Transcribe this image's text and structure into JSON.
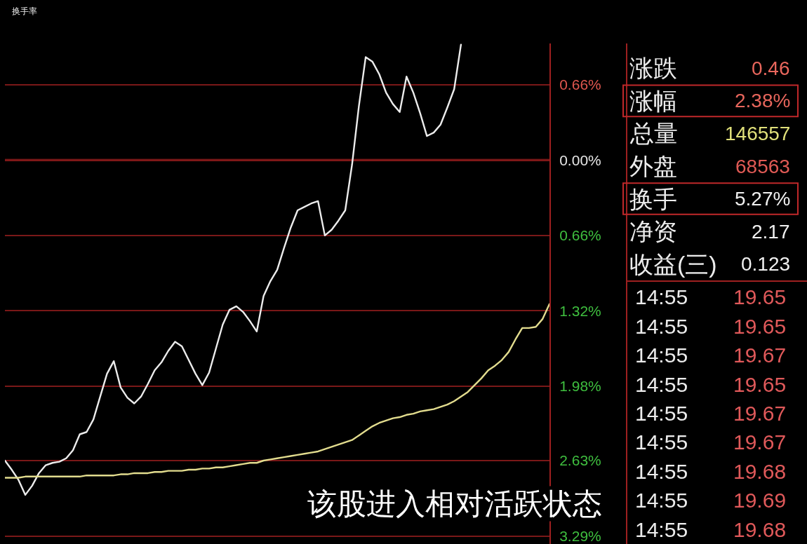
{
  "chart_data": [
    {
      "type": "line",
      "title": "换手率",
      "annotations": [
        "该股进入相对活跃状态"
      ],
      "categories": [
        null,
        null,
        null,
        null,
        null,
        null,
        null,
        null,
        null,
        null,
        null,
        null,
        null,
        null,
        null,
        null,
        null,
        null,
        null,
        null,
        null,
        null,
        null,
        null,
        null,
        null,
        null,
        null,
        null,
        null,
        null,
        null,
        null,
        null,
        null,
        null,
        null,
        null,
        null,
        null,
        null,
        null,
        null,
        null,
        null,
        null,
        null,
        null,
        null,
        null,
        null,
        null,
        null,
        null,
        null,
        null,
        null,
        null,
        null,
        null,
        null,
        null,
        null,
        null,
        null,
        null,
        null,
        null,
        null,
        null,
        null,
        null,
        null,
        null,
        null,
        null,
        null,
        null,
        null,
        null,
        null
      ],
      "series": [
        {
          "color": "#ececec",
          "values": [
            -2.63,
            -2.71,
            -2.8,
            -2.93,
            -2.85,
            -2.74,
            -2.67,
            -2.65,
            -2.64,
            -2.61,
            -2.54,
            -2.4,
            -2.38,
            -2.27,
            -2.07,
            -1.87,
            -1.76,
            -1.99,
            -2.08,
            -2.13,
            -2.07,
            -1.96,
            -1.84,
            -1.77,
            -1.67,
            -1.59,
            -1.63,
            -1.75,
            -1.87,
            -1.97,
            -1.86,
            -1.65,
            -1.44,
            -1.31,
            -1.28,
            -1.33,
            -1.41,
            -1.5,
            -1.19,
            -1.06,
            -0.96,
            -0.77,
            -0.59,
            -0.44,
            -0.41,
            -0.38,
            -0.36,
            -0.66,
            -0.61,
            -0.53,
            -0.44,
            -0.04,
            0.47,
            0.9,
            0.86,
            0.75,
            0.59,
            0.49,
            0.42,
            0.73,
            0.59,
            0.41,
            0.21,
            0.24,
            0.31,
            0.46,
            0.62,
            1.01,
            null,
            null,
            null,
            null,
            null,
            null,
            null,
            null,
            null,
            null,
            null,
            null,
            null
          ]
        },
        {
          "color": "#e2dc8e",
          "values": [
            -2.78,
            -2.78,
            -2.78,
            -2.77,
            -2.77,
            -2.77,
            -2.77,
            -2.77,
            -2.77,
            -2.77,
            -2.77,
            -2.77,
            -2.76,
            -2.76,
            -2.76,
            -2.76,
            -2.76,
            -2.75,
            -2.75,
            -2.74,
            -2.74,
            -2.74,
            -2.73,
            -2.73,
            -2.72,
            -2.72,
            -2.72,
            -2.71,
            -2.71,
            -2.7,
            -2.7,
            -2.69,
            -2.69,
            -2.68,
            -2.67,
            -2.66,
            -2.65,
            -2.65,
            -2.63,
            -2.62,
            -2.61,
            -2.6,
            -2.59,
            -2.58,
            -2.57,
            -2.56,
            -2.55,
            -2.53,
            -2.51,
            -2.49,
            -2.47,
            -2.45,
            -2.41,
            -2.37,
            -2.33,
            -2.3,
            -2.28,
            -2.26,
            -2.25,
            -2.23,
            -2.22,
            -2.2,
            -2.19,
            -2.18,
            -2.16,
            -2.14,
            -2.11,
            -2.07,
            -2.03,
            -1.97,
            -1.91,
            -1.84,
            -1.8,
            -1.75,
            -1.68,
            -1.57,
            -1.47,
            -1.47,
            -1.46,
            -1.39,
            -1.26
          ]
        }
      ],
      "ylim": [
        -3.36,
        1.02
      ],
      "yticks": [
        {
          "value": 0.66,
          "label": "0.66%"
        },
        {
          "value": 0,
          "label": "0.00%"
        },
        {
          "value": -0.66,
          "label": "0.66%"
        },
        {
          "value": -1.32,
          "label": "1.32%"
        },
        {
          "value": -1.98,
          "label": "1.98%"
        },
        {
          "value": -2.63,
          "label": "2.63%"
        },
        {
          "value": -3.29,
          "label": "3.29%"
        }
      ],
      "ref_lines": [
        {
          "axis": "y",
          "value": 0,
          "color": "#b32020"
        }
      ],
      "grid": "y",
      "tick_labels": "y"
    },
    {
      "type": "other",
      "categories": [
        "涨跌",
        "涨幅",
        "总量",
        "外盘",
        "换手",
        "净资",
        "收益(三)"
      ],
      "values": [
        0.46,
        2.38,
        146557,
        68563,
        5.27,
        2.17,
        0.123
      ],
      "value_labels": [
        "0.46",
        "2.38%",
        "146557",
        "68563",
        "5.27%",
        "2.17",
        "0.123"
      ],
      "colors": [
        "#e8665c",
        "#e8665c",
        "#e0e07a",
        "#e05a55",
        "#f0f0f0",
        "#f0f0f0",
        "#f0f0f0"
      ]
    },
    {
      "type": "other",
      "categories": [
        "14:55",
        "14:55",
        "14:55",
        "14:55",
        "14:55",
        "14:55",
        "14:55",
        "14:55",
        "14:55"
      ],
      "values": [
        19.65,
        19.65,
        19.67,
        19.65,
        19.67,
        19.67,
        19.68,
        19.69,
        19.68
      ],
      "data_labels": true,
      "colors": [
        "#e0595a",
        "#e0595a",
        "#e0595a",
        "#e0595a",
        "#e0595a",
        "#e0595a",
        "#e0595a",
        "#e0595a",
        "#e0595a"
      ]
    }
  ]
}
